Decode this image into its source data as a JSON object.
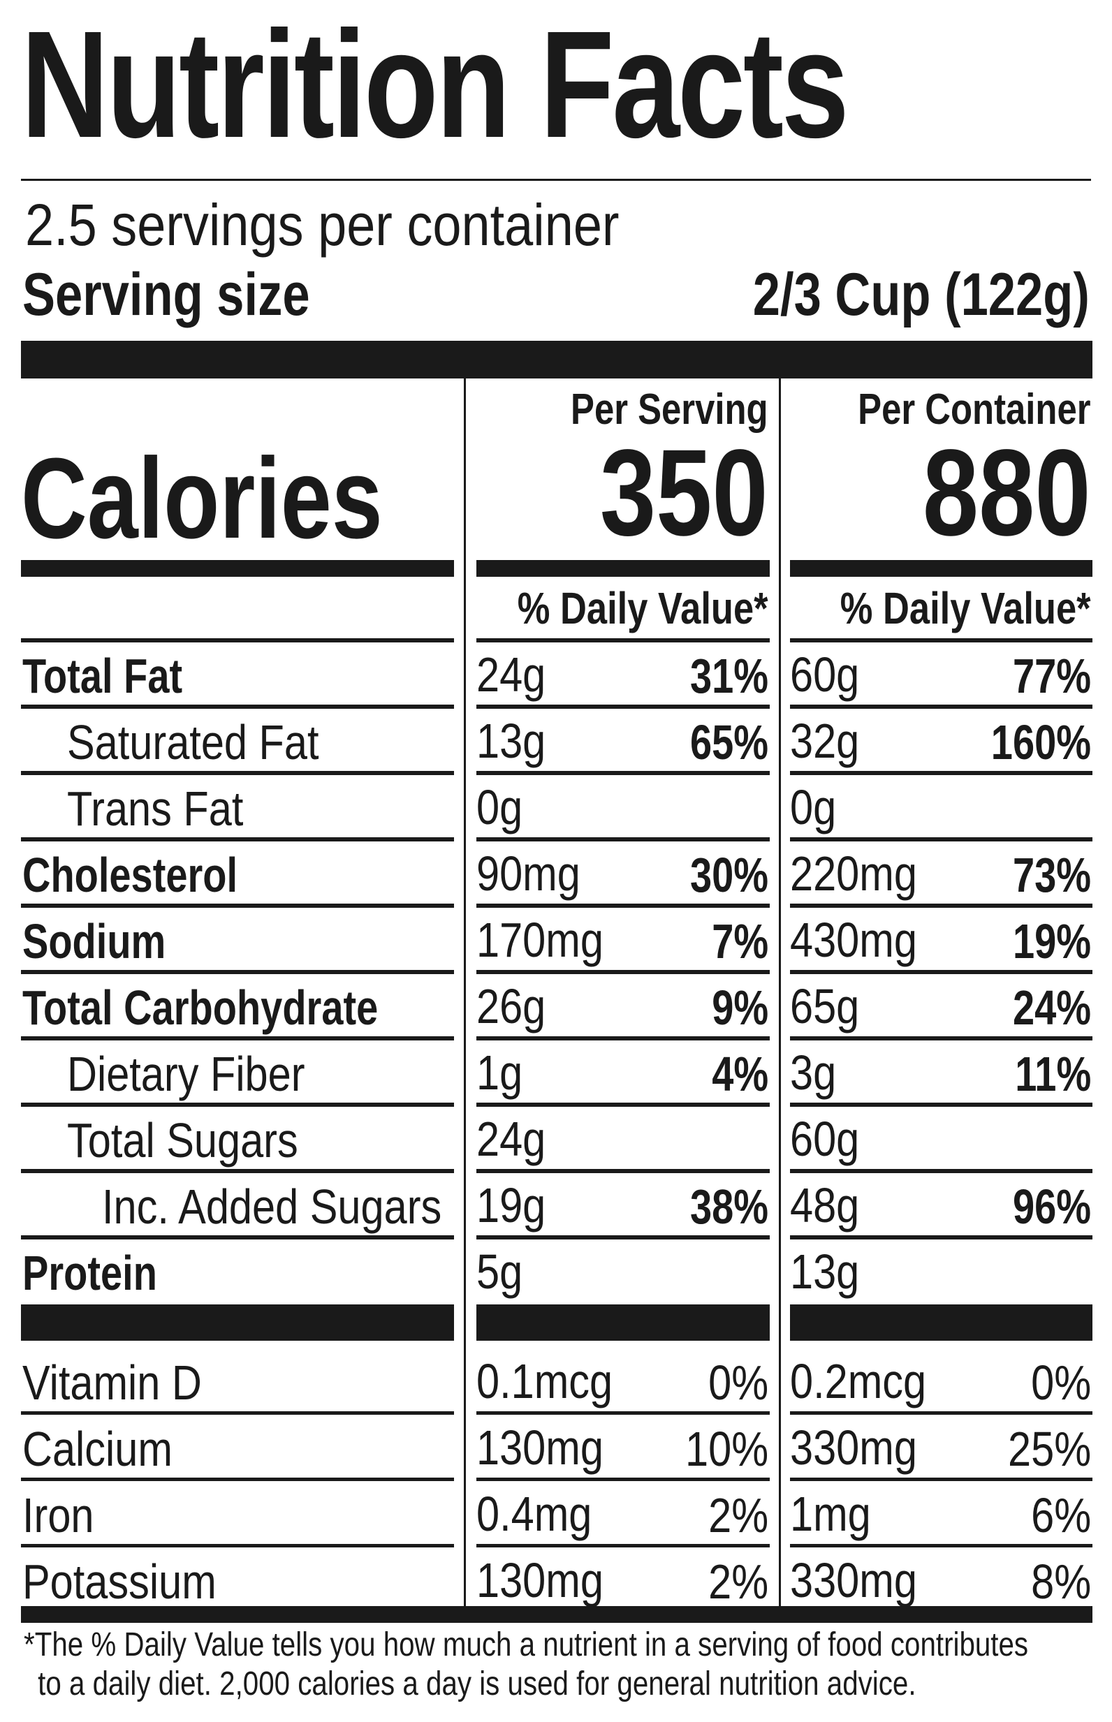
{
  "title": "Nutrition Facts",
  "servings_per_container": "2.5 servings per container",
  "serving_size": {
    "label": "Serving size",
    "value": "2/3 Cup (122g)"
  },
  "columns": {
    "per_serving": "Per Serving",
    "per_container": "Per Container"
  },
  "calories": {
    "label": "Calories",
    "per_serving": "350",
    "per_container": "880"
  },
  "daily_value_header": "% Daily Value*",
  "nutrients": [
    {
      "label": "Total Fat",
      "bold": true,
      "indent": 0,
      "serving_amount": "24g",
      "serving_dv": "31%",
      "container_amount": "60g",
      "container_dv": "77%"
    },
    {
      "label": "Saturated Fat",
      "bold": false,
      "indent": 1,
      "serving_amount": "13g",
      "serving_dv": "65%",
      "container_amount": "32g",
      "container_dv": "160%"
    },
    {
      "label": "Trans Fat",
      "bold": false,
      "indent": 1,
      "serving_amount": "0g",
      "serving_dv": "",
      "container_amount": "0g",
      "container_dv": ""
    },
    {
      "label": "Cholesterol",
      "bold": true,
      "indent": 0,
      "serving_amount": "90mg",
      "serving_dv": "30%",
      "container_amount": "220mg",
      "container_dv": "73%"
    },
    {
      "label": "Sodium",
      "bold": true,
      "indent": 0,
      "serving_amount": "170mg",
      "serving_dv": "7%",
      "container_amount": "430mg",
      "container_dv": "19%"
    },
    {
      "label": "Total Carbohydrate",
      "bold": true,
      "indent": 0,
      "serving_amount": "26g",
      "serving_dv": "9%",
      "container_amount": "65g",
      "container_dv": "24%"
    },
    {
      "label": "Dietary Fiber",
      "bold": false,
      "indent": 1,
      "serving_amount": "1g",
      "serving_dv": "4%",
      "container_amount": "3g",
      "container_dv": "11%"
    },
    {
      "label": "Total Sugars",
      "bold": false,
      "indent": 1,
      "serving_amount": "24g",
      "serving_dv": "",
      "container_amount": "60g",
      "container_dv": ""
    },
    {
      "label": "Inc. Added Sugars",
      "bold": false,
      "indent": 2,
      "serving_amount": "19g",
      "serving_dv": "38%",
      "container_amount": "48g",
      "container_dv": "96%"
    },
    {
      "label": "Protein",
      "bold": true,
      "indent": 0,
      "serving_amount": "5g",
      "serving_dv": "",
      "container_amount": "13g",
      "container_dv": ""
    }
  ],
  "vitamins": [
    {
      "label": "Vitamin D",
      "serving_amount": "0.1mcg",
      "serving_dv": "0%",
      "container_amount": "0.2mcg",
      "container_dv": "0%"
    },
    {
      "label": "Calcium",
      "serving_amount": "130mg",
      "serving_dv": "10%",
      "container_amount": "330mg",
      "container_dv": "25%"
    },
    {
      "label": "Iron",
      "serving_amount": "0.4mg",
      "serving_dv": "2%",
      "container_amount": "1mg",
      "container_dv": "6%"
    },
    {
      "label": "Potassium",
      "serving_amount": "130mg",
      "serving_dv": "2%",
      "container_amount": "330mg",
      "container_dv": "8%"
    }
  ],
  "footnote": {
    "line1": "*The % Daily Value tells you how much a nutrient in a serving of food contributes",
    "line2": "to a daily diet. 2,000 calories a day is used for general nutrition advice."
  }
}
